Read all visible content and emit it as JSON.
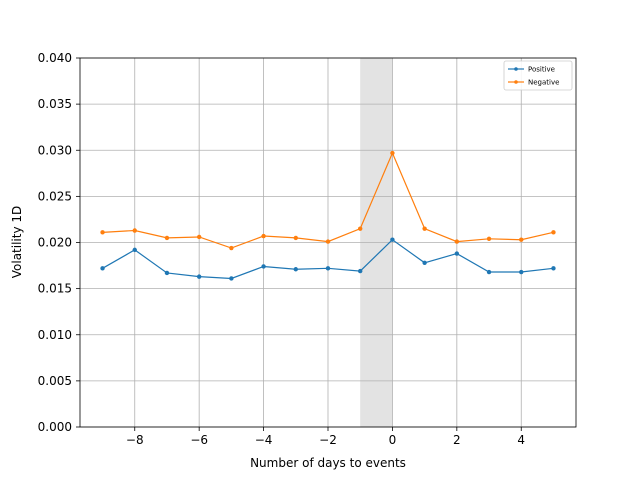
{
  "chart_data": {
    "type": "line",
    "title": "",
    "xlabel": "Number of days to events",
    "ylabel": "Volatility 1D",
    "xlim": [
      -9.7,
      5.7
    ],
    "ylim": [
      0.0,
      0.04
    ],
    "xticks": [
      -8,
      -6,
      -4,
      -2,
      0,
      2,
      4
    ],
    "xtick_labels": [
      "−8",
      "−6",
      "−4",
      "−2",
      "0",
      "2",
      "4"
    ],
    "yticks": [
      0.0,
      0.005,
      0.01,
      0.015,
      0.02,
      0.025,
      0.03,
      0.035,
      0.04
    ],
    "ytick_labels": [
      "0.000",
      "0.005",
      "0.010",
      "0.015",
      "0.020",
      "0.025",
      "0.030",
      "0.035",
      "0.040"
    ],
    "grid": true,
    "legend_position": "top-right",
    "shaded_region": {
      "x_start": -1,
      "x_end": 0,
      "color": "#e3e3e3"
    },
    "x": [
      -9,
      -8,
      -7,
      -6,
      -5,
      -4,
      -3,
      -2,
      -1,
      0,
      1,
      2,
      3,
      4,
      5
    ],
    "series": [
      {
        "name": "Positive",
        "color": "#1f77b4",
        "values": [
          0.0172,
          0.0192,
          0.0167,
          0.0163,
          0.0161,
          0.0174,
          0.0171,
          0.0172,
          0.0169,
          0.0203,
          0.0178,
          0.0188,
          0.0168,
          0.0168,
          0.0172
        ]
      },
      {
        "name": "Negative",
        "color": "#ff7f0e",
        "values": [
          0.0211,
          0.0213,
          0.0205,
          0.0206,
          0.0194,
          0.0207,
          0.0205,
          0.0201,
          0.0215,
          0.0297,
          0.0215,
          0.0201,
          0.0204,
          0.0203,
          0.0211
        ]
      }
    ]
  }
}
